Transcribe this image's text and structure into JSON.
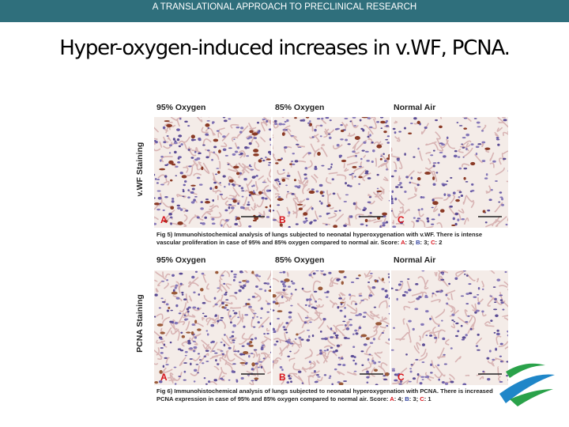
{
  "header": {
    "text": "A TRANSLATIONAL APPROACH TO PRECLINICAL RESEARCH"
  },
  "title": "Hyper-oxygen-induced increases in v.WF, PCNA.",
  "figures": [
    {
      "row_label": "v.WF Staining",
      "columns": [
        "95% Oxygen",
        "85% Oxygen",
        "Normal Air"
      ],
      "panels": [
        "A",
        "B",
        "C"
      ],
      "caption": "Fig 5) Immunohistochemical analysis of lungs subjected to neonatal hyperoxygenation with v.WF. There is intense vascular proliferation in case of 95% and 85% oxygen compared to normal air. Score:",
      "scores": [
        {
          "label": "A",
          "score": "3"
        },
        {
          "label": "B",
          "score": "3"
        },
        {
          "label": "C",
          "score": "2"
        }
      ]
    },
    {
      "row_label": "PCNA Staining",
      "columns": [
        "95% Oxygen",
        "85% Oxygen",
        "Normal Air"
      ],
      "panels": [
        "A",
        "B",
        "C"
      ],
      "caption": "Fig 6) Immunohistochemical analysis of lungs subjected to neonatal hyperoxygenation with PCNA. There is increased PCNA expression in case of 95% and 85% oxygen compared to normal air. Score:",
      "scores": [
        {
          "label": "A",
          "score": "4"
        },
        {
          "label": "B",
          "score": "3"
        },
        {
          "label": "C",
          "score": "1"
        }
      ]
    }
  ]
}
